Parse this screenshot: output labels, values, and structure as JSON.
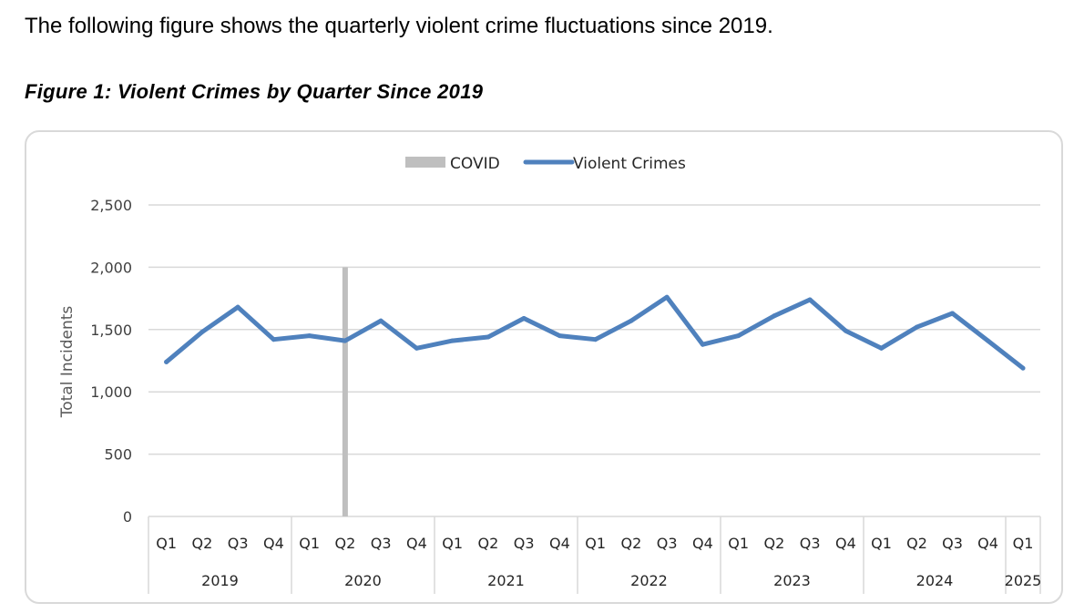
{
  "intro_text": "The following figure shows the quarterly violent crime fluctuations since 2019.",
  "figure_caption": "Figure 1:  Violent Crimes by Quarter Since 2019",
  "colors": {
    "series": "#4f81bd",
    "covid": "#bfbfbf",
    "grid": "#d9d9d9",
    "axis_text": "#404040"
  },
  "chart_data": {
    "type": "line",
    "title": "",
    "xlabel": "",
    "ylabel": "Total Incidents",
    "ylim": [
      0,
      2500
    ],
    "yticks": [
      "0",
      "500",
      "1,000",
      "1,500",
      "2,000",
      "2,500"
    ],
    "ytick_values": [
      0,
      500,
      1000,
      1500,
      2000,
      2500
    ],
    "grid": true,
    "legend_position": "top-center",
    "categories": [
      "Q1",
      "Q2",
      "Q3",
      "Q4",
      "Q1",
      "Q2",
      "Q3",
      "Q4",
      "Q1",
      "Q2",
      "Q3",
      "Q4",
      "Q1",
      "Q2",
      "Q3",
      "Q4",
      "Q1",
      "Q2",
      "Q3",
      "Q4",
      "Q1",
      "Q2",
      "Q3",
      "Q4",
      "Q1"
    ],
    "year_groups": [
      {
        "label": "2019",
        "count": 4
      },
      {
        "label": "2020",
        "count": 4
      },
      {
        "label": "2021",
        "count": 4
      },
      {
        "label": "2022",
        "count": 4
      },
      {
        "label": "2023",
        "count": 4
      },
      {
        "label": "2024",
        "count": 4
      },
      {
        "label": "2025",
        "count": 1
      }
    ],
    "series": [
      {
        "name": "Violent Crimes",
        "values": [
          1240,
          1480,
          1680,
          1420,
          1450,
          1410,
          1570,
          1350,
          1410,
          1440,
          1590,
          1450,
          1420,
          1570,
          1760,
          1380,
          1450,
          1610,
          1740,
          1490,
          1350,
          1520,
          1630,
          1410,
          1190
        ]
      }
    ],
    "covid": {
      "name": "COVID",
      "category_index": 5,
      "value": 2000
    }
  }
}
